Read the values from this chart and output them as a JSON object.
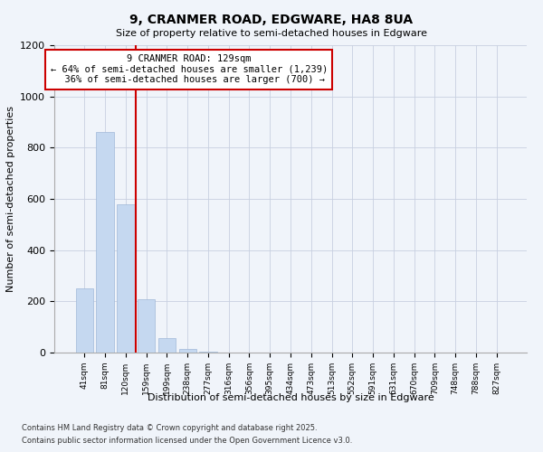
{
  "title1": "9, CRANMER ROAD, EDGWARE, HA8 8UA",
  "title2": "Size of property relative to semi-detached houses in Edgware",
  "xlabel": "Distribution of semi-detached houses by size in Edgware",
  "ylabel": "Number of semi-detached properties",
  "categories": [
    "41sqm",
    "81sqm",
    "120sqm",
    "159sqm",
    "199sqm",
    "238sqm",
    "277sqm",
    "316sqm",
    "356sqm",
    "395sqm",
    "434sqm",
    "473sqm",
    "513sqm",
    "552sqm",
    "591sqm",
    "631sqm",
    "670sqm",
    "709sqm",
    "748sqm",
    "788sqm",
    "827sqm"
  ],
  "values": [
    250,
    860,
    580,
    210,
    55,
    15,
    2,
    0,
    0,
    0,
    0,
    0,
    0,
    0,
    0,
    0,
    0,
    0,
    0,
    0,
    0
  ],
  "bar_color": "#c5d8f0",
  "bar_edge_color": "#a0b8d8",
  "vline_x": 2.5,
  "vline_color": "#cc0000",
  "annotation_text": "9 CRANMER ROAD: 129sqm\n← 64% of semi-detached houses are smaller (1,239)\n  36% of semi-detached houses are larger (700) →",
  "annotation_box_color": "#ffffff",
  "annotation_box_edge": "#cc0000",
  "ylim": [
    0,
    1200
  ],
  "yticks": [
    0,
    200,
    400,
    600,
    800,
    1000,
    1200
  ],
  "background_color": "#f0f4fa",
  "grid_color": "#c8d0e0",
  "footer1": "Contains HM Land Registry data © Crown copyright and database right 2025.",
  "footer2": "Contains public sector information licensed under the Open Government Licence v3.0."
}
